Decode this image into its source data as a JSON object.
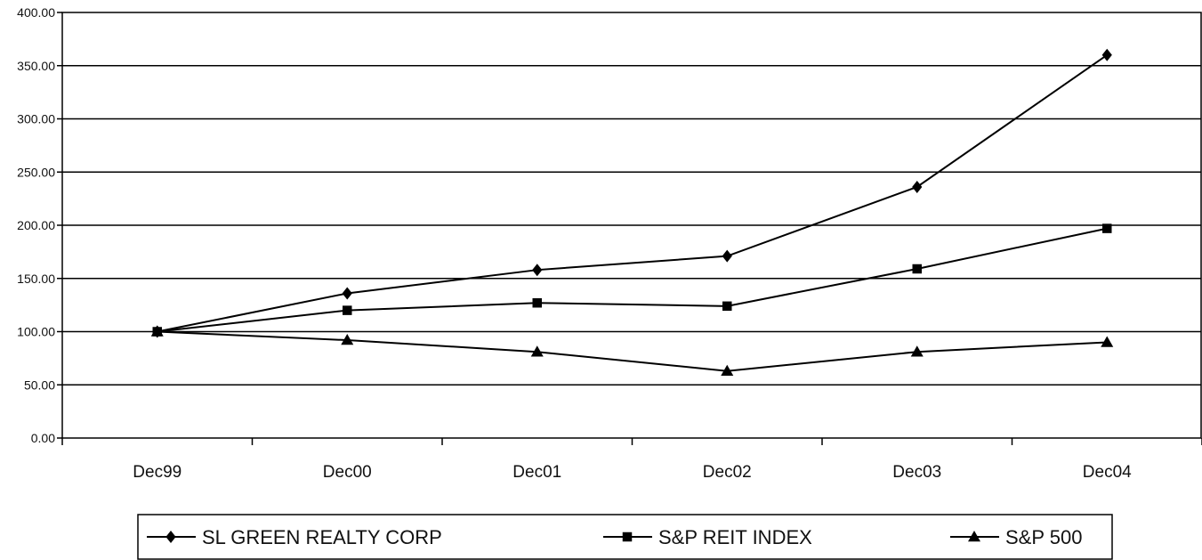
{
  "chart_data": {
    "type": "line",
    "title": "",
    "xlabel": "",
    "ylabel": "",
    "categories": [
      "Dec99",
      "Dec00",
      "Dec01",
      "Dec02",
      "Dec03",
      "Dec04"
    ],
    "ylim": [
      0,
      400
    ],
    "y_ticks": [
      "0.00",
      "50.00",
      "100.00",
      "150.00",
      "200.00",
      "250.00",
      "300.00",
      "350.00",
      "400.00"
    ],
    "grid": true,
    "legend_position": "bottom",
    "series": [
      {
        "name": "SL GREEN REALTY CORP",
        "marker": "diamond",
        "color": "#000000",
        "values": [
          100,
          136,
          158,
          171,
          236,
          360
        ]
      },
      {
        "name": "S&P REIT INDEX",
        "marker": "square",
        "color": "#000000",
        "values": [
          100,
          120,
          127,
          124,
          159,
          197
        ]
      },
      {
        "name": "S&P 500",
        "marker": "triangle",
        "color": "#000000",
        "values": [
          100,
          92,
          81,
          63,
          81,
          90
        ]
      }
    ]
  }
}
